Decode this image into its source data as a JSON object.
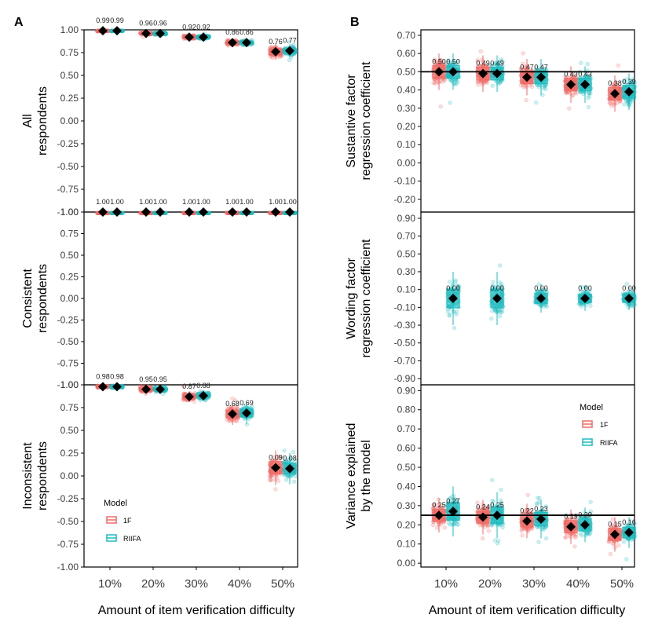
{
  "colors": {
    "one_f": "#f06b66",
    "riifa": "#1fbcbf",
    "marker": "#000000",
    "frame": "#000000",
    "tick_text": "#3c3c3c",
    "label_text": "#000000"
  },
  "legend_a": {
    "title": "Model",
    "items": [
      "1F",
      "RIIFA"
    ]
  },
  "legend_b": {
    "title": "Model",
    "items": [
      "1F",
      "RIIFA"
    ]
  },
  "chart_data": [
    {
      "type": "box-jitter",
      "panel": "A",
      "panel_label": "A",
      "title": "",
      "xlabel": "Amount of item verification difficulty",
      "categories": [
        "10%",
        "20%",
        "30%",
        "40%",
        "50%"
      ],
      "series": [
        {
          "name": "1F"
        },
        {
          "name": "RIIFA"
        }
      ],
      "facets": [
        {
          "label": [
            "All",
            "respondents"
          ],
          "ylim": [
            -1.0,
            1.0
          ],
          "yticks": [
            1.0,
            0.75,
            0.5,
            0.25,
            0.0,
            -0.25,
            -0.5,
            -0.75,
            -1.0
          ],
          "ytick_labels": [
            "1.00",
            "0.75",
            "0.50",
            "0.25",
            "0.00",
            "-0.25",
            "-0.50",
            "-0.75",
            "-1.00"
          ],
          "means": {
            "1F": [
              0.99,
              0.96,
              0.92,
              0.86,
              0.76
            ],
            "RIIFA": [
              0.99,
              0.96,
              0.92,
              0.86,
              0.77
            ]
          },
          "value_labels": {
            "1F": [
              "0.99",
              "0.96",
              "0.92",
              "0.86",
              "0.76"
            ],
            "RIIFA": [
              "0.99",
              "0.96",
              "0.92",
              "0.86",
              "0.77"
            ]
          },
          "spread": {
            "1F": [
              0.01,
              0.02,
              0.03,
              0.04,
              0.09
            ],
            "RIIFA": [
              0.01,
              0.02,
              0.03,
              0.04,
              0.07
            ]
          }
        },
        {
          "label": [
            "Consistent",
            "respondents"
          ],
          "ylim": [
            -1.0,
            1.0
          ],
          "yticks": [
            1.0,
            0.75,
            0.5,
            0.25,
            0.0,
            -0.25,
            -0.5,
            -0.75,
            -1.0
          ],
          "ytick_labels": [
            "1.00",
            "0.75",
            "0.50",
            "0.25",
            "0.00",
            "-0.25",
            "-0.50",
            "-0.75",
            "-1.00"
          ],
          "means": {
            "1F": [
              1.0,
              1.0,
              1.0,
              1.0,
              1.0
            ],
            "RIIFA": [
              1.0,
              1.0,
              1.0,
              1.0,
              1.0
            ]
          },
          "value_labels": {
            "1F": [
              "1.00",
              "1.00",
              "1.00",
              "1.00",
              "1.00"
            ],
            "RIIFA": [
              "1.00",
              "1.00",
              "1.00",
              "1.00",
              "1.00"
            ]
          },
          "spread": {
            "1F": [
              0.005,
              0.005,
              0.005,
              0.005,
              0.005
            ],
            "RIIFA": [
              0.005,
              0.005,
              0.005,
              0.005,
              0.005
            ]
          }
        },
        {
          "label": [
            "Inconsistent",
            "respondents"
          ],
          "ylim": [
            -1.0,
            1.0
          ],
          "yticks": [
            1.0,
            0.75,
            0.5,
            0.25,
            0.0,
            -0.25,
            -0.5,
            -0.75,
            -1.0
          ],
          "ytick_labels": [
            "1.00",
            "0.75",
            "0.50",
            "0.25",
            "0.00",
            "-0.25",
            "-0.50",
            "-0.75",
            "-1.00"
          ],
          "means": {
            "1F": [
              0.98,
              0.95,
              0.87,
              0.68,
              0.09
            ],
            "RIIFA": [
              0.98,
              0.95,
              0.88,
              0.69,
              0.08
            ]
          },
          "value_labels": {
            "1F": [
              "0.98",
              "0.95",
              "0.87",
              "0.68",
              "0.09"
            ],
            "RIIFA": [
              "0.98",
              "0.95",
              "0.88",
              "0.69",
              "0.08"
            ]
          },
          "spread": {
            "1F": [
              0.02,
              0.04,
              0.06,
              0.12,
              0.19
            ],
            "RIIFA": [
              0.02,
              0.04,
              0.06,
              0.12,
              0.17
            ]
          }
        }
      ]
    },
    {
      "type": "box-jitter",
      "panel": "B",
      "panel_label": "B",
      "title": "",
      "xlabel": "Amount of item verification difficulty",
      "categories": [
        "10%",
        "20%",
        "30%",
        "40%",
        "50%"
      ],
      "series": [
        {
          "name": "1F"
        },
        {
          "name": "RIIFA"
        }
      ],
      "facets": [
        {
          "label": [
            "Sustantive factor",
            "regression coefficient"
          ],
          "ylim": [
            -0.27,
            0.73
          ],
          "yticks": [
            0.7,
            0.6,
            0.5,
            0.4,
            0.3,
            0.2,
            0.1,
            0.0,
            -0.1,
            -0.2
          ],
          "ytick_labels": [
            "0.70",
            "0.60",
            "0.50",
            "0.40",
            "0.30",
            "0.20",
            "0.10",
            "0.00",
            "-0.10",
            "-0.20"
          ],
          "reference_line": 0.5,
          "means": {
            "1F": [
              0.5,
              0.49,
              0.47,
              0.43,
              0.38
            ],
            "RIIFA": [
              0.5,
              0.49,
              0.47,
              0.43,
              0.39
            ]
          },
          "value_labels": {
            "1F": [
              "0.50",
              "0.49",
              "0.47",
              "0.43",
              "0.38"
            ],
            "RIIFA": [
              "0.50",
              "0.49",
              "0.47",
              "0.43",
              "0.39"
            ]
          },
          "spread": {
            "1F": [
              0.1,
              0.1,
              0.1,
              0.1,
              0.1
            ],
            "RIIFA": [
              0.1,
              0.1,
              0.1,
              0.1,
              0.1
            ]
          }
        },
        {
          "label": [
            "Wording factor",
            "regression coefficient"
          ],
          "ylim": [
            -0.97,
            0.97
          ],
          "yticks": [
            0.9,
            0.7,
            0.5,
            0.3,
            0.1,
            -0.1,
            -0.3,
            -0.5,
            -0.7,
            -0.9
          ],
          "ytick_labels": [
            "0.90",
            "0.70",
            "0.50",
            "0.30",
            "0.10",
            "-0.10",
            "-0.30",
            "-0.50",
            "-0.70",
            "-0.90"
          ],
          "means": {
            "1F": [
              null,
              null,
              null,
              null,
              null
            ],
            "RIIFA": [
              0.0,
              0.0,
              0.0,
              0.0,
              0.0
            ]
          },
          "value_labels": {
            "1F": [
              "",
              "",
              "",
              "",
              ""
            ],
            "RIIFA": [
              "0.00",
              "0.00",
              "0.00",
              "0.00",
              "0.00"
            ]
          },
          "spread": {
            "1F": [
              0,
              0,
              0,
              0,
              0
            ],
            "RIIFA": [
              0.3,
              0.3,
              0.16,
              0.14,
              0.13
            ]
          }
        },
        {
          "label": [
            "Variance explained",
            "by the model"
          ],
          "ylim": [
            -0.02,
            0.93
          ],
          "yticks": [
            0.9,
            0.8,
            0.7,
            0.6,
            0.5,
            0.4,
            0.3,
            0.2,
            0.1,
            0.0
          ],
          "ytick_labels": [
            "0.90",
            "0.80",
            "0.70",
            "0.60",
            "0.50",
            "0.40",
            "0.30",
            "0.20",
            "0.10",
            "0.00"
          ],
          "reference_line": 0.25,
          "means": {
            "1F": [
              0.25,
              0.24,
              0.22,
              0.19,
              0.15
            ],
            "RIIFA": [
              0.27,
              0.25,
              0.23,
              0.2,
              0.16
            ]
          },
          "value_labels": {
            "1F": [
              "0.25",
              "0.24",
              "0.22",
              "0.19",
              "0.15"
            ],
            "RIIFA": [
              "0.27",
              "0.25",
              "0.23",
              "0.20",
              "0.16"
            ]
          },
          "spread": {
            "1F": [
              0.09,
              0.09,
              0.09,
              0.09,
              0.09
            ],
            "RIIFA": [
              0.13,
              0.12,
              0.1,
              0.09,
              0.08
            ]
          }
        }
      ]
    }
  ]
}
